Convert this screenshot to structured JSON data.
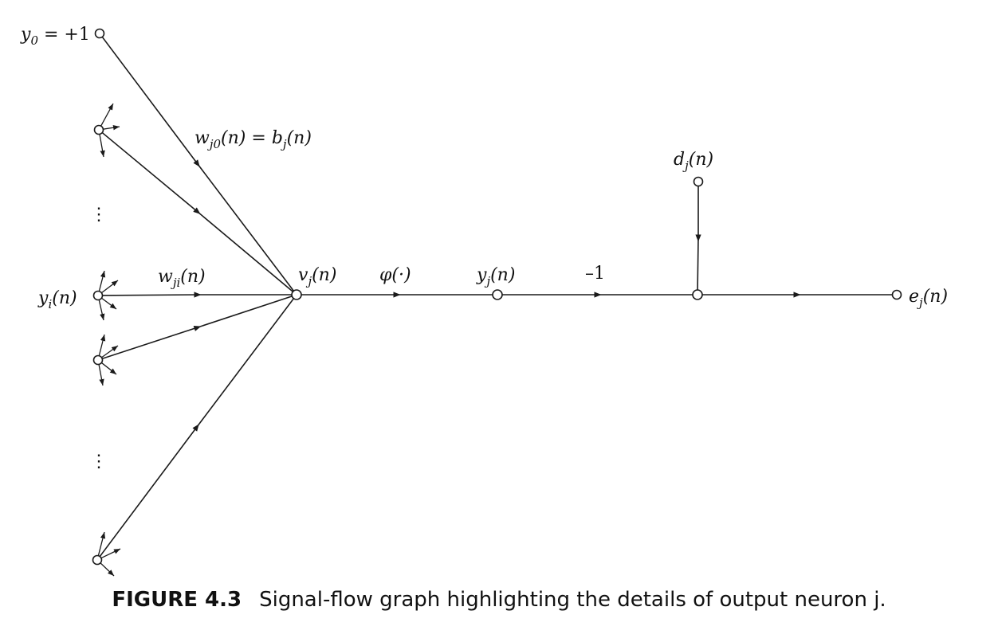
{
  "labels": {
    "y0_lhs": "y",
    "y0_sub": "0",
    "y0_rhs": " = +1",
    "w0_a": "w",
    "w0_a_sub": "j0",
    "w0_a_arg": "(n) = ",
    "w0_b": "b",
    "w0_b_sub": "j",
    "w0_b_arg": "(n)",
    "yi": "y",
    "yi_sub": "i",
    "yi_arg": "(n)",
    "wji": "w",
    "wji_sub": "ji",
    "wji_arg": "(n)",
    "vj": "v",
    "vj_sub": "j",
    "vj_arg": "(n)",
    "phi": "φ(·)",
    "yj": "y",
    "yj_sub": "j",
    "yj_arg": "(n)",
    "minus_one": "–1",
    "dj": "d",
    "dj_sub": "j",
    "dj_arg": "(n)",
    "ej": "e",
    "ej_sub": "j",
    "ej_arg": "(n)",
    "vdots": "⋮"
  },
  "caption": {
    "figure_number": "FIGURE 4.3",
    "text": "Signal-flow graph highlighting the details of output neuron j."
  }
}
